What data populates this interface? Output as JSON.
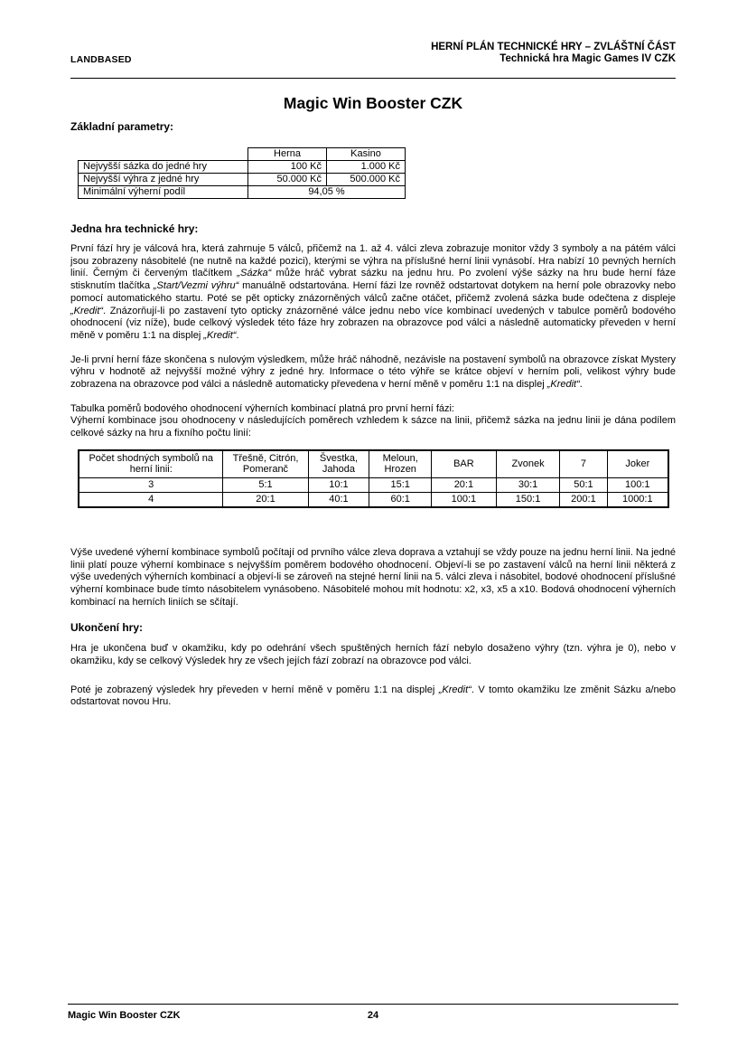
{
  "page_header": {
    "left": "LANDBASED",
    "right_line1": "HERNÍ PLÁN TECHNICKÉ HRY – ZVLÁŠTNÍ ČÁST",
    "right_line2": "Technická hra Magic Games IV CZK"
  },
  "title": "Magic Win Booster CZK",
  "basic_params": {
    "heading": "Základní parametry:",
    "table": {
      "col_headers": [
        "Herna",
        "Kasino"
      ],
      "rows": [
        [
          "Nejvyšší sázka do jedné hry",
          "100 Kč",
          "1.000 Kč"
        ],
        [
          "Nejvyšší výhra z jedné hry",
          "50.000 Kč",
          "500.000 Kč"
        ]
      ],
      "merged_label": "Minimální výherní podíl",
      "merged_value": "94,05 %"
    }
  },
  "one_game": {
    "heading": "Jedna hra technické hry:",
    "para1": [
      {
        "t": "První fází hry je válcová hra, která zahrnuje 5 válců, přičemž na 1. až 4. válci zleva zobrazuje monitor vždy 3 symboly a na pátém válci jsou zobrazeny násobitelé (ne nutně na každé pozici), kterými se výhra na příslušné herní linii vynásobí. Hra nabízí 10 pevných herních linií. Černým či červeným tlačítkem "
      },
      {
        "t": "„Sázka“",
        "i": true
      },
      {
        "t": " může hráč vybrat sázku na jednu hru. Po zvolení výše sázky na hru bude herní fáze stisknutím tlačítka "
      },
      {
        "t": "„Start/Vezmi výhru“",
        "i": true
      },
      {
        "t": " manuálně odstartována. Herní fázi lze rovněž odstartovat dotykem na herní pole obrazovky nebo pomocí automatického startu. Poté se pět opticky znázorněných válců začne otáčet, přičemž zvolená sázka bude odečtena z displeje "
      },
      {
        "t": "„Kredit“",
        "i": true
      },
      {
        "t": ". Znázorňují-li po zastavení tyto opticky znázorněné válce jednu nebo více kombinací uvedených v tabulce poměrů bodového ohodnocení (viz níže), bude celkový výsledek této fáze hry zobrazen na obrazovce pod válci a následně automaticky převeden v herní měně v poměru 1:1 na displej "
      },
      {
        "t": "„Kredit“",
        "i": true
      },
      {
        "t": "."
      }
    ],
    "para2": [
      {
        "t": "Je-li první herní fáze skončena s nulovým výsledkem, může hráč náhodně, nezávisle na postavení symbolů na obrazovce získat Mystery výhru v hodnotě až nejvyšší možné výhry z jedné hry. Informace o této výhře se krátce objeví v herním poli, velikost výhry bude zobrazena na obrazovce pod válci a následně automaticky převedena v herní měně v poměru 1:1 na displej "
      },
      {
        "t": "„Kredit“",
        "i": true
      },
      {
        "t": "."
      }
    ],
    "table_intro_line1": "Tabulka poměrů bodového ohodnocení výherních kombinací platná pro první herní fázi:",
    "table_intro_line2": "Výherní kombinace jsou ohodnoceny v následujících poměrech vzhledem k sázce na linii, přičemž sázka na jednu linii je dána podílem celkové sázky na hru a fixního počtu linií:",
    "payout_table": {
      "headers": [
        "Počet shodných symbolů na herní linii:",
        "Třešně, Citrón, Pomeranč",
        "Švestka, Jahoda",
        "Meloun, Hrozen",
        "BAR",
        "Zvonek",
        "7",
        "Joker"
      ],
      "rows": [
        [
          "3",
          "5:1",
          "10:1",
          "15:1",
          "20:1",
          "30:1",
          "50:1",
          "100:1"
        ],
        [
          "4",
          "20:1",
          "40:1",
          "60:1",
          "100:1",
          "150:1",
          "200:1",
          "1000:1"
        ]
      ]
    },
    "para3": "Výše uvedené výherní kombinace symbolů počítají od prvního válce zleva doprava a vztahují se vždy pouze na jednu herní linii. Na jedné linii platí pouze výherní kombinace s nejvyšším poměrem bodového ohodnocení. Objeví-li se po zastavení válců na herní linii některá z výše uvedených výherních kombinací a objeví-li se zároveň na stejné herní linii na 5. válci zleva i násobitel, bodové ohodnocení příslušné výherní kombinace bude tímto násobitelem vynásobeno. Násobitelé mohou mít hodnotu: x2, x3, x5 a x10. Bodová ohodnocení výherních kombinací na herních liniích se sčítají."
  },
  "end_game": {
    "heading": "Ukončení hry:",
    "para1": "Hra je ukončena buď v okamžiku, kdy po odehrání všech spuštěných herních fází nebylo dosaženo výhry (tzn. výhra je 0), nebo v okamžiku, kdy se celkový Výsledek hry ze všech jejích fází zobrazí na obrazovce pod válci.",
    "para2": [
      {
        "t": "Poté je zobrazený výsledek hry převeden v herní měně v poměru 1:1 na displej "
      },
      {
        "t": "„Kredit“",
        "i": true
      },
      {
        "t": ". V tomto okamžiku lze změnit Sázku a/nebo odstartovat novou Hru."
      }
    ]
  },
  "page_footer": {
    "left": "Magic Win Booster CZK",
    "page_number": "24"
  }
}
